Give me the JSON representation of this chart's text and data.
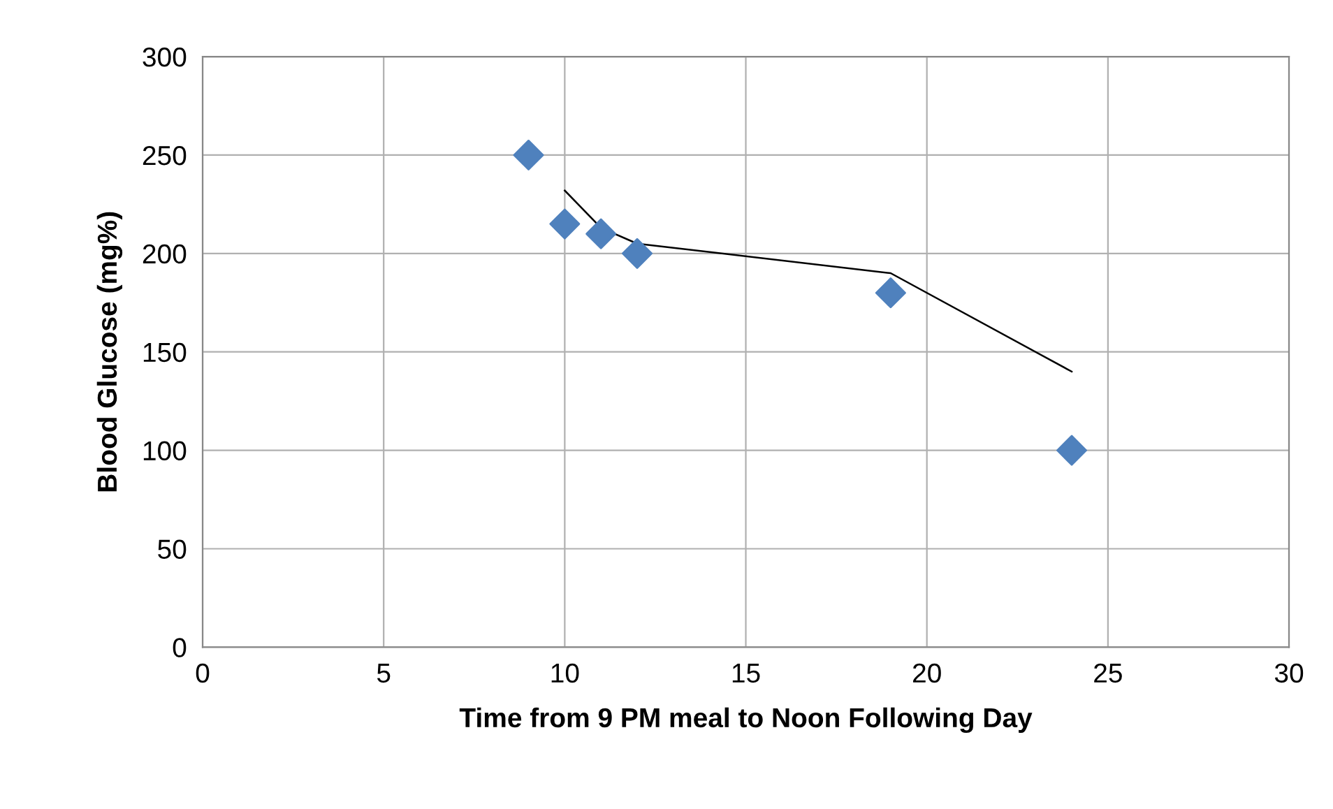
{
  "chart_data": {
    "type": "scatter",
    "xlabel": "Time from 9 PM meal to Noon Following Day",
    "ylabel": "Blood Glucose (mg%)",
    "xlim": [
      0,
      30
    ],
    "ylim": [
      0,
      300
    ],
    "xticks": [
      0,
      5,
      10,
      15,
      20,
      25,
      30
    ],
    "yticks": [
      0,
      50,
      100,
      150,
      200,
      250,
      300
    ],
    "grid": true,
    "legend": false,
    "series": [
      {
        "color": "#4f81bd",
        "marker": "diamond",
        "x": [
          9,
          10,
          11,
          12,
          19,
          24
        ],
        "values": [
          250,
          215,
          210,
          200,
          180,
          100
        ]
      },
      {
        "type": "line",
        "color": "#000000",
        "marker": "none",
        "line_style": "solid",
        "x": [
          10,
          11,
          12,
          19,
          24
        ],
        "values": [
          232,
          213,
          205,
          190,
          140
        ]
      }
    ]
  }
}
